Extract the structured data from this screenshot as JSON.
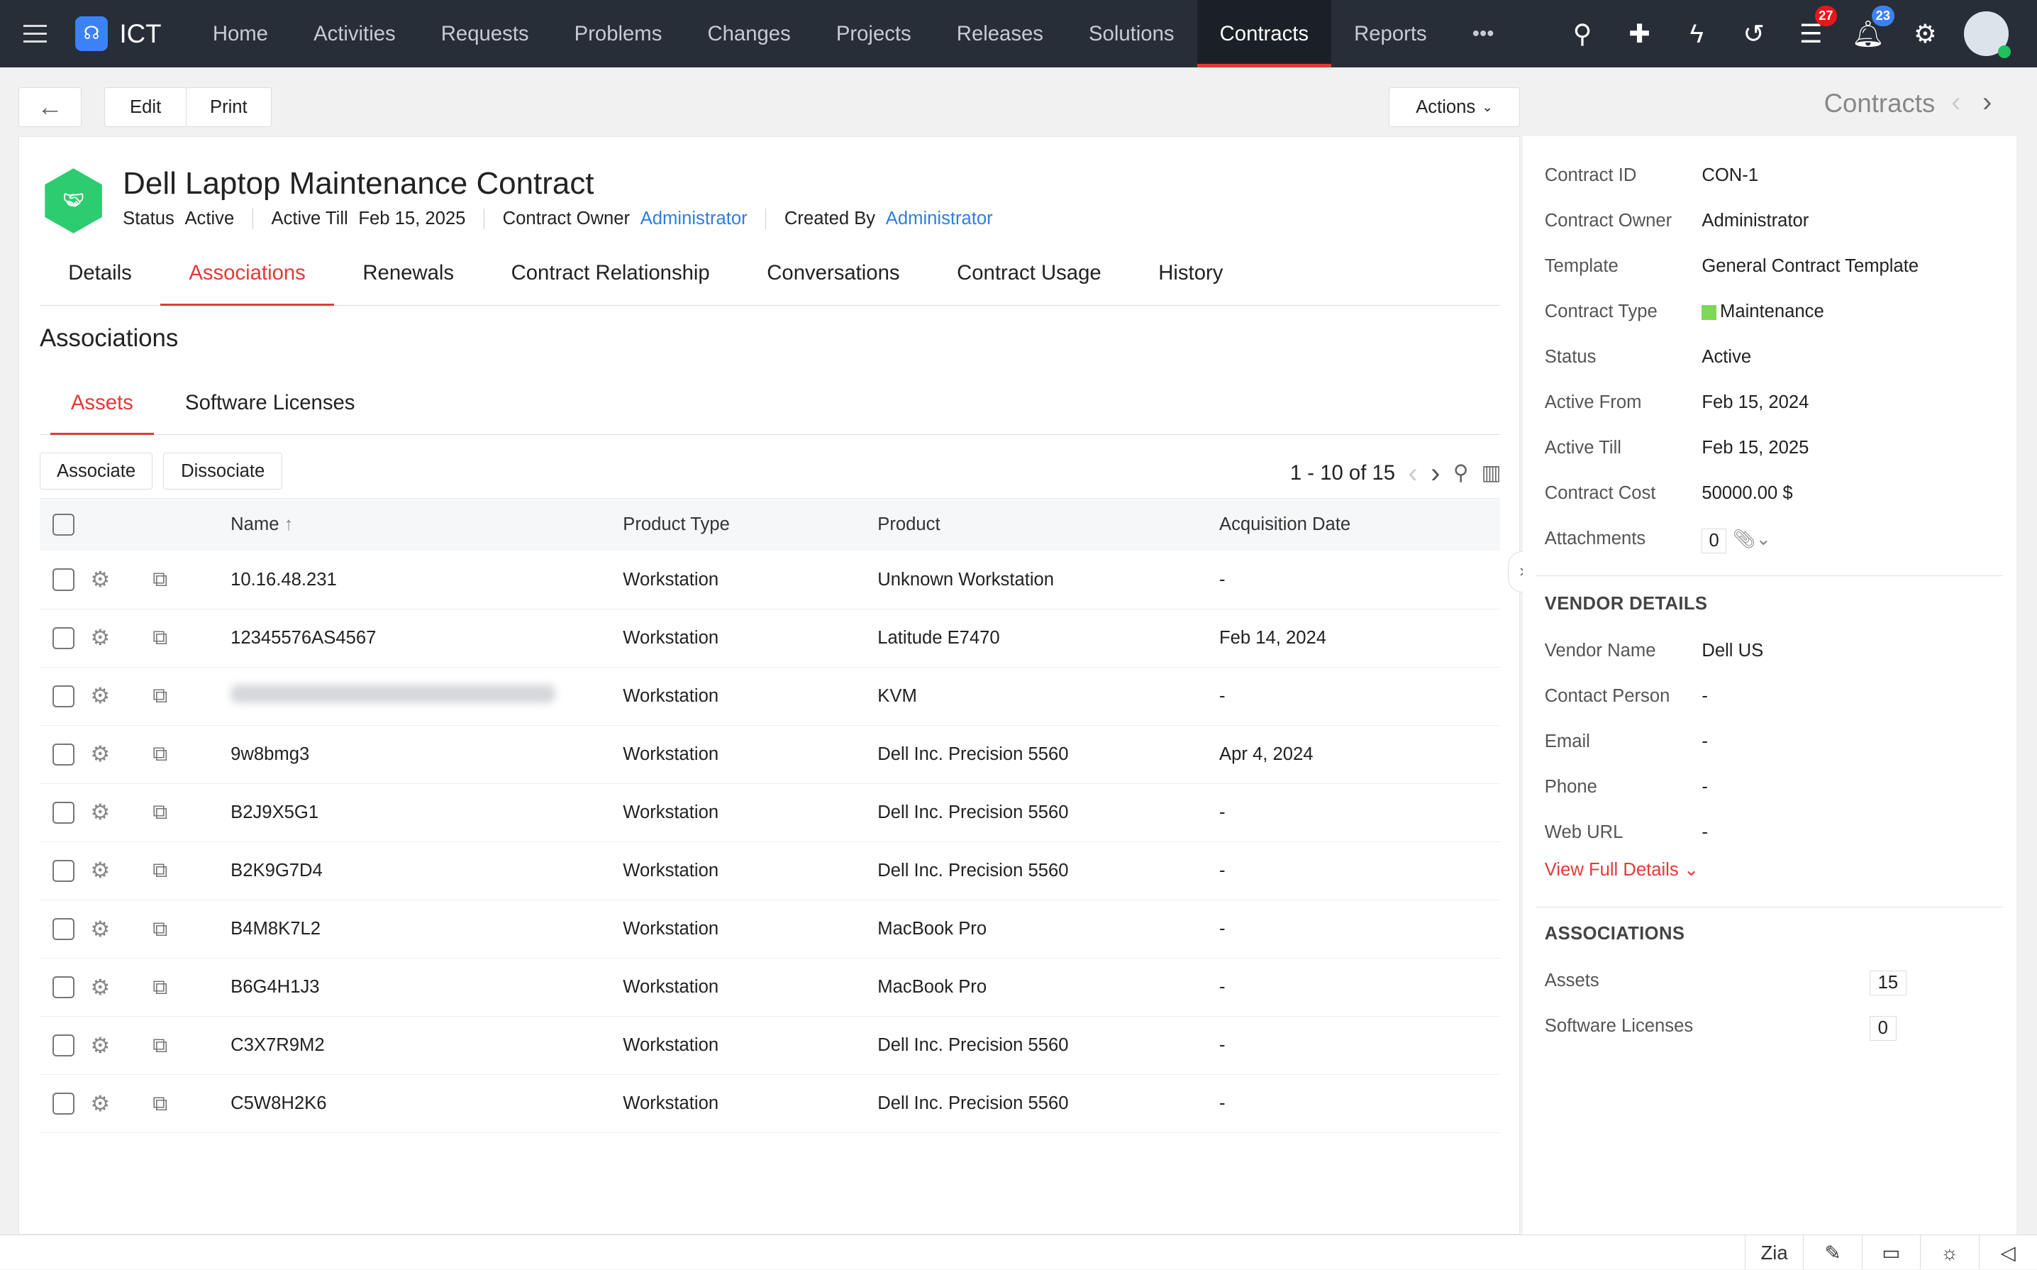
{
  "nav": {
    "brand": "ICT",
    "items": [
      "Home",
      "Activities",
      "Requests",
      "Problems",
      "Changes",
      "Projects",
      "Releases",
      "Solutions",
      "Contracts",
      "Reports"
    ],
    "more": "•••",
    "tasks_badge": "27",
    "notifications_badge": "23",
    "badge_red": "#e8171a",
    "badge_blue": "#3b82f6"
  },
  "toolbar": {
    "edit": "Edit",
    "print": "Print",
    "actions": "Actions",
    "module": "Contracts"
  },
  "contract": {
    "title": "Dell Laptop Maintenance Contract",
    "status_label": "Status",
    "status": "Active",
    "active_till_label": "Active Till",
    "active_till": "Feb 15, 2025",
    "owner_label": "Contract Owner",
    "owner": "Administrator",
    "created_by_label": "Created By",
    "created_by": "Administrator"
  },
  "tabs": [
    "Details",
    "Associations",
    "Renewals",
    "Contract Relationship",
    "Conversations",
    "Contract Usage",
    "History"
  ],
  "section_title": "Associations",
  "subtabs": [
    "Assets",
    "Software Licenses"
  ],
  "buttons": {
    "associate": "Associate",
    "dissociate": "Dissociate"
  },
  "pager": "1 - 10 of 15",
  "table": {
    "columns": [
      "Name",
      "Product Type",
      "Product",
      "Acquisition Date"
    ],
    "rows": [
      {
        "name": "10.16.48.231",
        "type": "Workstation",
        "product": "Unknown Workstation",
        "date": "-"
      },
      {
        "name": "12345576AS4567",
        "type": "Workstation",
        "product": "Latitude E7470",
        "date": "Feb 14, 2024"
      },
      {
        "name": "",
        "type": "Workstation",
        "product": "KVM",
        "date": "-"
      },
      {
        "name": "9w8bmg3",
        "type": "Workstation",
        "product": "Dell Inc. Precision 5560",
        "date": "Apr 4, 2024"
      },
      {
        "name": "B2J9X5G1",
        "type": "Workstation",
        "product": "Dell Inc. Precision 5560",
        "date": "-"
      },
      {
        "name": "B2K9G7D4",
        "type": "Workstation",
        "product": "Dell Inc. Precision 5560",
        "date": "-"
      },
      {
        "name": "B4M8K7L2",
        "type": "Workstation",
        "product": "MacBook Pro",
        "date": "-"
      },
      {
        "name": "B6G4H1J3",
        "type": "Workstation",
        "product": "MacBook Pro",
        "date": "-"
      },
      {
        "name": "C3X7R9M2",
        "type": "Workstation",
        "product": "Dell Inc. Precision 5560",
        "date": "-"
      },
      {
        "name": "C5W8H2K6",
        "type": "Workstation",
        "product": "Dell Inc. Precision 5560",
        "date": "-"
      }
    ]
  },
  "details": [
    {
      "k": "Contract ID",
      "v": "CON-1"
    },
    {
      "k": "Contract Owner",
      "v": "Administrator"
    },
    {
      "k": "Template",
      "v": "General Contract Template"
    },
    {
      "k": "Contract Type",
      "v": "Maintenance"
    },
    {
      "k": "Status",
      "v": "Active"
    },
    {
      "k": "Active From",
      "v": "Feb 15, 2024"
    },
    {
      "k": "Active Till",
      "v": "Feb 15, 2025"
    },
    {
      "k": "Contract Cost",
      "v": "50000.00 $"
    },
    {
      "k": "Attachments",
      "v": "0"
    }
  ],
  "contract_type_color": "#7ed957",
  "vendor": {
    "heading": "VENDOR DETAILS",
    "rows": [
      {
        "k": "Vendor Name",
        "v": "Dell US"
      },
      {
        "k": "Contact Person",
        "v": "-"
      },
      {
        "k": "Email",
        "v": "-"
      },
      {
        "k": "Phone",
        "v": "-"
      },
      {
        "k": "Web URL",
        "v": "-"
      }
    ],
    "view_full": "View Full Details"
  },
  "associations": {
    "heading": "ASSOCIATIONS",
    "rows": [
      {
        "k": "Assets",
        "v": "15"
      },
      {
        "k": "Software Licenses",
        "v": "0"
      }
    ]
  }
}
